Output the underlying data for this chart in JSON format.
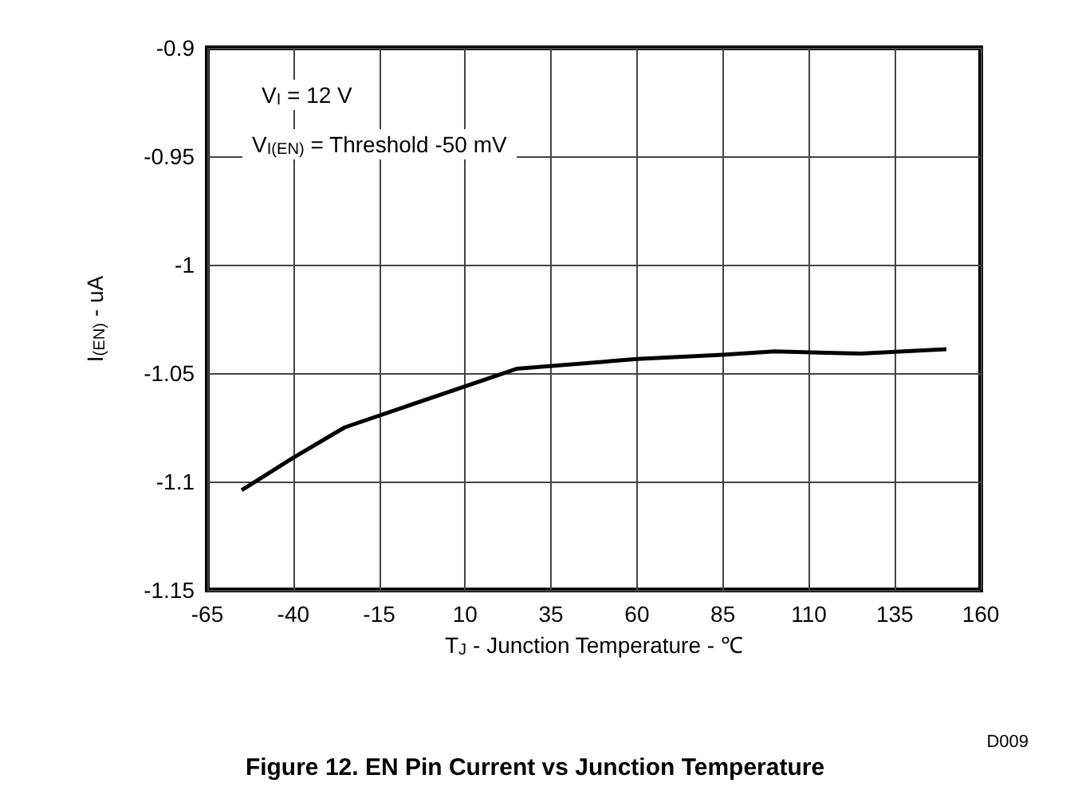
{
  "chart_data": {
    "type": "line",
    "title": "Figure 12. EN Pin Current vs Junction Temperature",
    "xlabel": "T$_{J}$ - Junction Temperature - ℃",
    "ylabel": "I$_{(EN)}$ - uA",
    "annotations": [
      "V$_{I}$ = 12 V",
      "V$_{I(EN)}$ = Threshold -50 mV",
      "D009"
    ],
    "x": [
      -55,
      -40,
      -25,
      25,
      60,
      85,
      100,
      125,
      150
    ],
    "series": [
      {
        "color": "#000000",
        "values": [
          -1.104,
          -1.089,
          -1.075,
          -1.048,
          -1.0435,
          -1.0415,
          -1.04,
          -1.041,
          -1.039
        ]
      }
    ],
    "xlim": [
      -65,
      160
    ],
    "xticks": [
      -65,
      -40,
      -15,
      10,
      35,
      60,
      85,
      110,
      135,
      160
    ],
    "ylim": [
      -1.15,
      -0.9
    ],
    "yticks": [
      -1.15,
      -1.1,
      -1.05,
      -1,
      -0.95,
      -0.9
    ],
    "grid": true,
    "marker": "none",
    "line_style": "solid"
  }
}
